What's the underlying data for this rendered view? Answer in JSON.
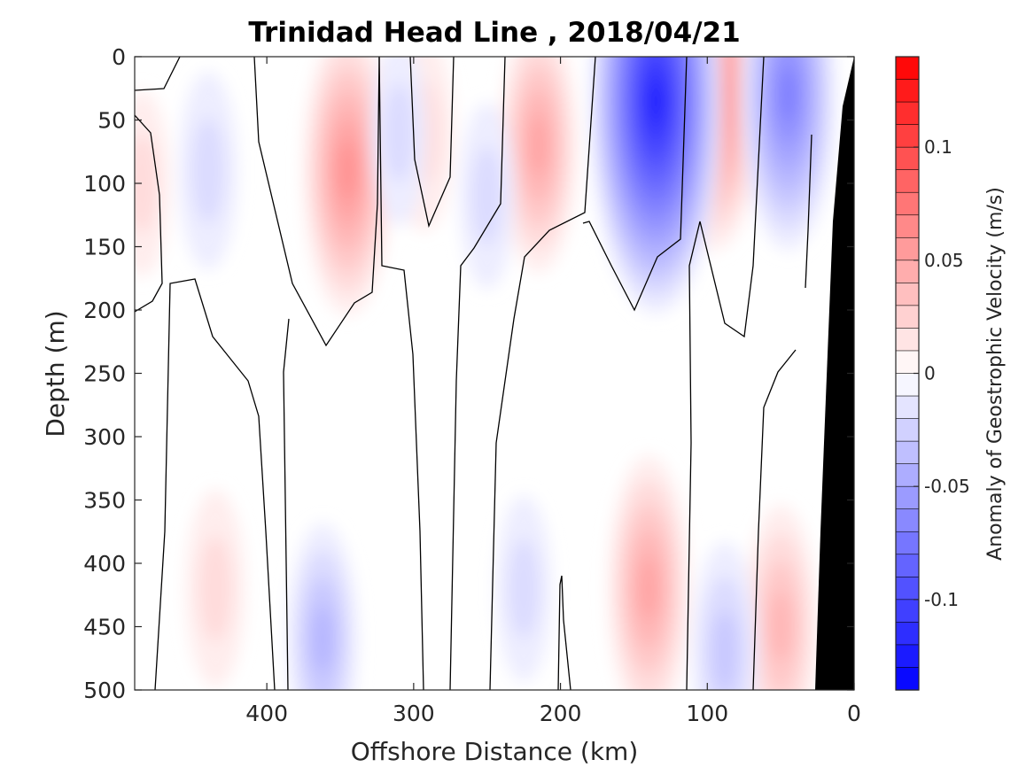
{
  "chart_data": {
    "type": "heatmap",
    "title": "Trinidad Head Line , 2018/04/21",
    "xlabel": "Offshore Distance (km)",
    "ylabel": "Depth (m)",
    "colorbar_label": "Anomaly of Geostrophic Velocity (m/s)",
    "xlim": [
      490,
      0
    ],
    "ylim": [
      0,
      500
    ],
    "x_ticks": [
      400,
      300,
      200,
      100,
      0
    ],
    "y_ticks": [
      0,
      50,
      100,
      150,
      200,
      250,
      300,
      350,
      400,
      450,
      500
    ],
    "colorbar_range": [
      -0.14,
      0.14
    ],
    "colorbar_step": 0.01,
    "colorbar_ticks": [
      0.1,
      0.05,
      0,
      -0.05,
      -0.1
    ],
    "colorbar_tick_labels": [
      "0.1",
      "0.05",
      "0",
      "-0.05",
      "-0.1"
    ],
    "colors": {
      "positive": "#ff0000",
      "negative": "#0000ff",
      "zero": "#ffffff",
      "bottom": "#000000"
    },
    "seafloor": "bottom topography shown in black near 0–30 km",
    "features": [
      {
        "sign": "positive",
        "x": 345,
        "depth": 90,
        "peak": 0.06
      },
      {
        "sign": "positive",
        "x": 293,
        "depth": 60,
        "peak": 0.02
      },
      {
        "sign": "positive",
        "x": 215,
        "depth": 70,
        "peak": 0.045
      },
      {
        "sign": "positive",
        "x": 95,
        "depth": 30,
        "peak": 0.07
      },
      {
        "sign": "positive",
        "x": 140,
        "depth": 420,
        "peak": 0.05
      },
      {
        "sign": "positive",
        "x": 50,
        "depth": 450,
        "peak": 0.04
      },
      {
        "sign": "positive",
        "x": 435,
        "depth": 420,
        "peak": 0.02
      },
      {
        "sign": "positive",
        "x": 485,
        "depth": 100,
        "peak": 0.015
      },
      {
        "sign": "negative",
        "x": 135,
        "depth": 35,
        "peak": -0.12
      },
      {
        "sign": "negative",
        "x": 45,
        "depth": 30,
        "peak": -0.07
      },
      {
        "sign": "negative",
        "x": 440,
        "depth": 90,
        "peak": -0.02
      },
      {
        "sign": "negative",
        "x": 362,
        "depth": 460,
        "peak": -0.035
      },
      {
        "sign": "negative",
        "x": 88,
        "depth": 470,
        "peak": -0.03
      },
      {
        "sign": "negative",
        "x": 310,
        "depth": 60,
        "peak": -0.015
      },
      {
        "sign": "negative",
        "x": 250,
        "depth": 110,
        "peak": -0.015
      },
      {
        "sign": "negative",
        "x": 225,
        "depth": 420,
        "peak": -0.015
      }
    ]
  }
}
